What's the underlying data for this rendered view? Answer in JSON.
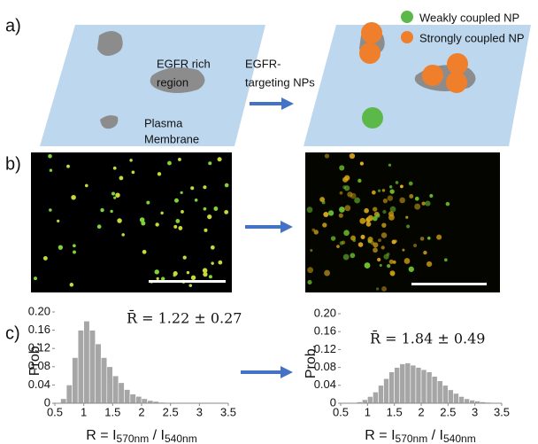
{
  "panel_labels": [
    "a)",
    "b)",
    "c)"
  ],
  "diagram": {
    "region_label": [
      "EGFR rich",
      "region"
    ],
    "membrane_label": [
      "Plasma",
      "Membrane"
    ],
    "arrow_label": [
      "EGFR-",
      "targeting NPs"
    ],
    "legend": [
      {
        "name": "Weakly coupled NP",
        "color": "#5cb848"
      },
      {
        "name": "Strongly coupled NP",
        "color": "#f07f2c"
      }
    ]
  },
  "chart_data": [
    {
      "type": "histogram",
      "y_label": "Prob.",
      "annotation": "R̄ = 1.22 ± 0.27",
      "x_label": {
        "main": "R = I",
        "sub1": "570nm",
        "mid": " / I",
        "sub2": "540nm"
      },
      "color": "#a6a6a6",
      "bins": [
        0.6,
        0.7,
        0.8,
        0.9,
        1.0,
        1.1,
        1.2,
        1.3,
        1.4,
        1.5,
        1.6,
        1.7,
        1.8,
        1.9,
        2.0,
        2.1,
        2.2,
        2.3,
        2.4
      ],
      "values": [
        0.01,
        0.04,
        0.1,
        0.16,
        0.18,
        0.16,
        0.13,
        0.1,
        0.08,
        0.06,
        0.045,
        0.03,
        0.02,
        0.015,
        0.01,
        0.006,
        0.004,
        0.002
      ],
      "xlim": [
        0.5,
        3.5
      ],
      "ylim": [
        0,
        0.2
      ],
      "xticks": [
        0.5,
        1,
        1.5,
        2,
        2.5,
        3,
        3.5
      ],
      "yticks": [
        0,
        0.04,
        0.08,
        0.12,
        0.16,
        {
          "value": 0.2,
          "label": "0.20"
        }
      ]
    },
    {
      "type": "histogram",
      "y_label": "Prob.",
      "annotation": "R̄ = 1.84 ± 0.49",
      "x_label": {
        "main": "R = I",
        "sub1": "570nm",
        "mid": " / I",
        "sub2": "540nm"
      },
      "color": "#a6a6a6",
      "bins": [
        0.8,
        0.9,
        1.0,
        1.1,
        1.2,
        1.3,
        1.4,
        1.5,
        1.6,
        1.7,
        1.8,
        1.9,
        2.0,
        2.1,
        2.2,
        2.3,
        2.4,
        2.5,
        2.6,
        2.7,
        2.8,
        2.9,
        3.0,
        3.1,
        3.2,
        3.3
      ],
      "values": [
        0.003,
        0.008,
        0.015,
        0.025,
        0.04,
        0.055,
        0.07,
        0.08,
        0.088,
        0.09,
        0.085,
        0.08,
        0.075,
        0.07,
        0.06,
        0.05,
        0.04,
        0.03,
        0.022,
        0.015,
        0.01,
        0.007,
        0.005,
        0.003,
        0.002
      ],
      "xlim": [
        0.5,
        3.5
      ],
      "ylim": [
        0,
        0.2
      ],
      "xticks": [
        0.5,
        1,
        1.5,
        2,
        2.5,
        3,
        3.5
      ],
      "yticks": [
        0,
        0.04,
        0.08,
        0.12,
        0.16,
        {
          "value": 0.2,
          "label": "0.20"
        }
      ]
    }
  ]
}
